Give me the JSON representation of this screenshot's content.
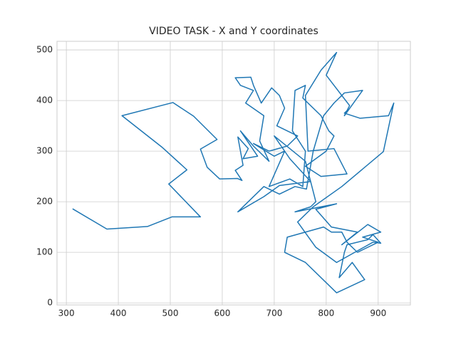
{
  "chart_data": {
    "type": "line",
    "title": "VIDEO TASK - X and Y coordinates",
    "color": "#1f77b4",
    "x": [
      312,
      378,
      456,
      503,
      558,
      497,
      532,
      485,
      407,
      505,
      545,
      590,
      558,
      571,
      595,
      629,
      638,
      625,
      640,
      630,
      650,
      640,
      668,
      635,
      660,
      690,
      672,
      680,
      645,
      660,
      635,
      625,
      655,
      660,
      675,
      695,
      710,
      720,
      705,
      745,
      725,
      690,
      660,
      700,
      720,
      690,
      730,
      755,
      760,
      735,
      740,
      760,
      755,
      790,
      805,
      815,
      800,
      760,
      790,
      840,
      815,
      765,
      760,
      790,
      820,
      800,
      845,
      835,
      870,
      835,
      815,
      795,
      775,
      762,
      740,
      710,
      680,
      630,
      680,
      710,
      770,
      730,
      700,
      760,
      780,
      770,
      740,
      820,
      780,
      810,
      860,
      830,
      880,
      905,
      870,
      900,
      860,
      840,
      830,
      810,
      795,
      725,
      720,
      760,
      820,
      874,
      850,
      825,
      835,
      840,
      880,
      890,
      905,
      890,
      855,
      820,
      780,
      745,
      775,
      830,
      910,
      930,
      920,
      865,
      835,
      840
    ],
    "values": [
      186,
      146,
      151,
      170,
      170,
      235,
      263,
      307,
      370,
      396,
      369,
      323,
      304,
      268,
      245,
      246,
      242,
      262,
      272,
      328,
      305,
      285,
      290,
      340,
      310,
      280,
      320,
      370,
      395,
      420,
      430,
      445,
      446,
      430,
      395,
      425,
      410,
      385,
      350,
      330,
      310,
      300,
      315,
      290,
      300,
      230,
      245,
      230,
      300,
      340,
      420,
      430,
      405,
      370,
      340,
      330,
      300,
      270,
      250,
      255,
      305,
      300,
      410,
      460,
      495,
      450,
      390,
      370,
      420,
      415,
      395,
      370,
      300,
      225,
      230,
      215,
      230,
      180,
      210,
      232,
      240,
      285,
      330,
      280,
      200,
      190,
      180,
      196,
      185,
      150,
      140,
      115,
      155,
      140,
      130,
      120,
      100,
      120,
      140,
      140,
      150,
      130,
      100,
      80,
      20,
      46,
      80,
      50,
      100,
      115,
      125,
      135,
      118,
      120,
      100,
      80,
      110,
      160,
      190,
      230,
      299,
      395,
      370,
      365,
      375,
      380
    ],
    "xlim": [
      282,
      962
    ],
    "ylim": [
      -4,
      517
    ],
    "xticks": [
      300,
      400,
      500,
      600,
      700,
      800,
      900
    ],
    "yticks": [
      0,
      100,
      200,
      300,
      400,
      500
    ],
    "grid": true
  }
}
